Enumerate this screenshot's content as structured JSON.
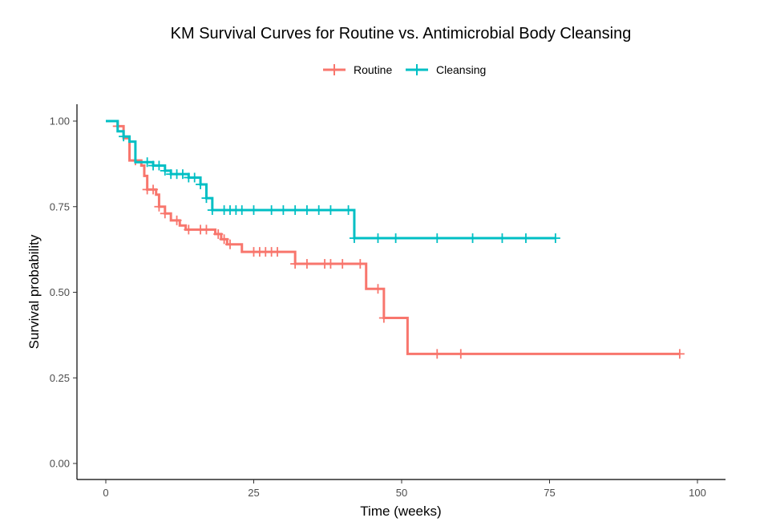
{
  "chart_data": {
    "type": "line",
    "subtype": "kaplan-meier-step",
    "title": "KM Survival Curves for Routine vs. Antimicrobial Body Cleansing",
    "xlabel": "Time (weeks)",
    "ylabel": "Survival probability",
    "xlim": [
      0,
      100
    ],
    "ylim": [
      0,
      1
    ],
    "x_ticks": [
      0,
      25,
      50,
      75,
      100
    ],
    "x_tick_labels": [
      "0",
      "25",
      "50",
      "75",
      "100"
    ],
    "y_ticks": [
      0,
      0.25,
      0.5,
      0.75,
      1
    ],
    "y_tick_labels": [
      "0.00",
      "0.25",
      "0.50",
      "0.75",
      "1.00"
    ],
    "grid": false,
    "legend_position": "top",
    "series": [
      {
        "name": "Routine",
        "color": "#F8766D",
        "steps": [
          [
            0,
            1.0
          ],
          [
            2,
            0.985
          ],
          [
            3,
            0.95
          ],
          [
            4,
            0.885
          ],
          [
            6,
            0.87
          ],
          [
            6.5,
            0.84
          ],
          [
            7,
            0.8
          ],
          [
            8.5,
            0.785
          ],
          [
            9,
            0.75
          ],
          [
            10,
            0.73
          ],
          [
            11,
            0.71
          ],
          [
            12.5,
            0.695
          ],
          [
            13.5,
            0.683
          ],
          [
            18.5,
            0.67
          ],
          [
            19.5,
            0.655
          ],
          [
            20.5,
            0.64
          ],
          [
            23,
            0.618
          ],
          [
            32,
            0.583
          ],
          [
            44,
            0.51
          ],
          [
            47,
            0.425
          ],
          [
            51,
            0.32
          ],
          [
            97,
            0.32
          ]
        ],
        "censor_times": [
          2,
          5,
          7,
          8,
          9,
          10,
          12,
          14,
          16,
          17,
          19,
          20,
          21,
          25,
          26,
          27,
          28,
          29,
          32,
          34,
          37,
          38,
          40,
          43,
          46,
          47,
          56,
          60,
          97
        ]
      },
      {
        "name": "Cleansing",
        "color": "#00BFC4",
        "steps": [
          [
            0,
            1.0
          ],
          [
            2,
            0.97
          ],
          [
            3,
            0.955
          ],
          [
            4,
            0.94
          ],
          [
            5,
            0.88
          ],
          [
            8,
            0.87
          ],
          [
            10,
            0.855
          ],
          [
            11,
            0.845
          ],
          [
            14,
            0.835
          ],
          [
            16,
            0.815
          ],
          [
            17,
            0.775
          ],
          [
            18,
            0.74
          ],
          [
            42,
            0.658
          ],
          [
            76,
            0.658
          ]
        ],
        "censor_times": [
          3,
          7,
          8,
          9,
          10,
          11,
          12,
          13,
          14,
          15,
          16,
          17,
          18,
          20,
          21,
          22,
          23,
          25,
          28,
          30,
          32,
          34,
          36,
          38,
          41,
          42,
          46,
          49,
          56,
          62,
          67,
          71,
          76
        ]
      }
    ]
  }
}
